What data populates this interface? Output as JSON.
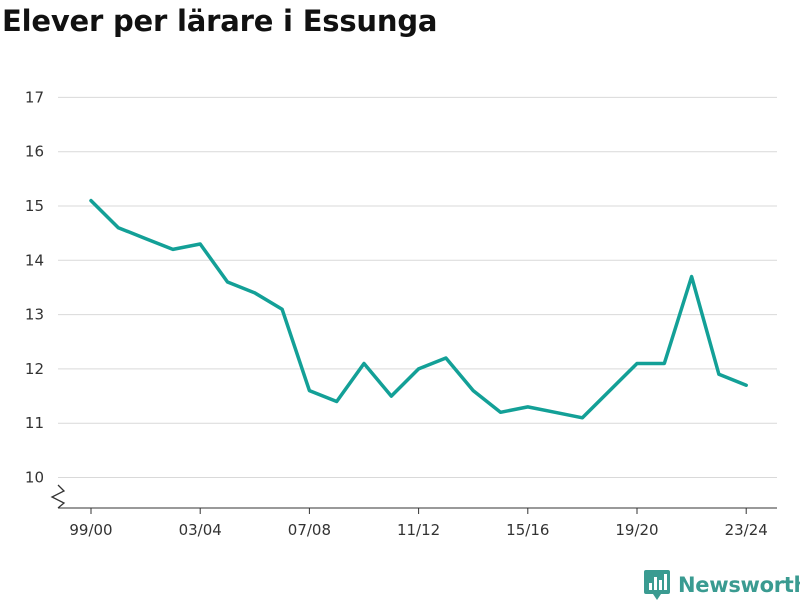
{
  "chart_data": {
    "type": "line",
    "title": "Elever per lärare i Essunga",
    "xlabel": "",
    "ylabel": "",
    "ylim": [
      9.5,
      17.3
    ],
    "y_ticks": [
      10,
      11,
      12,
      13,
      14,
      15,
      16,
      17
    ],
    "x_tick_labels": [
      "99/00",
      "03/04",
      "07/08",
      "11/12",
      "15/16",
      "19/20",
      "23/24"
    ],
    "axis_break": true,
    "grid": true,
    "legend": "none",
    "line_color": "#13a097",
    "categories": [
      "99/00",
      "00/01",
      "01/02",
      "02/03",
      "03/04",
      "04/05",
      "05/06",
      "06/07",
      "07/08",
      "08/09",
      "09/10",
      "10/11",
      "11/12",
      "12/13",
      "13/14",
      "14/15",
      "15/16",
      "16/17",
      "17/18",
      "18/19",
      "19/20",
      "20/21",
      "21/22",
      "22/23",
      "23/24"
    ],
    "values": [
      15.1,
      14.6,
      14.4,
      14.2,
      14.3,
      13.6,
      13.4,
      13.1,
      11.6,
      11.4,
      12.1,
      11.5,
      12.0,
      12.2,
      11.6,
      11.2,
      11.3,
      11.2,
      11.1,
      11.6,
      12.1,
      12.1,
      13.7,
      11.9,
      11.7
    ]
  },
  "brand": {
    "name": "Newsworthy",
    "color": "#3a9b91",
    "icon": "bar-chart-icon"
  }
}
